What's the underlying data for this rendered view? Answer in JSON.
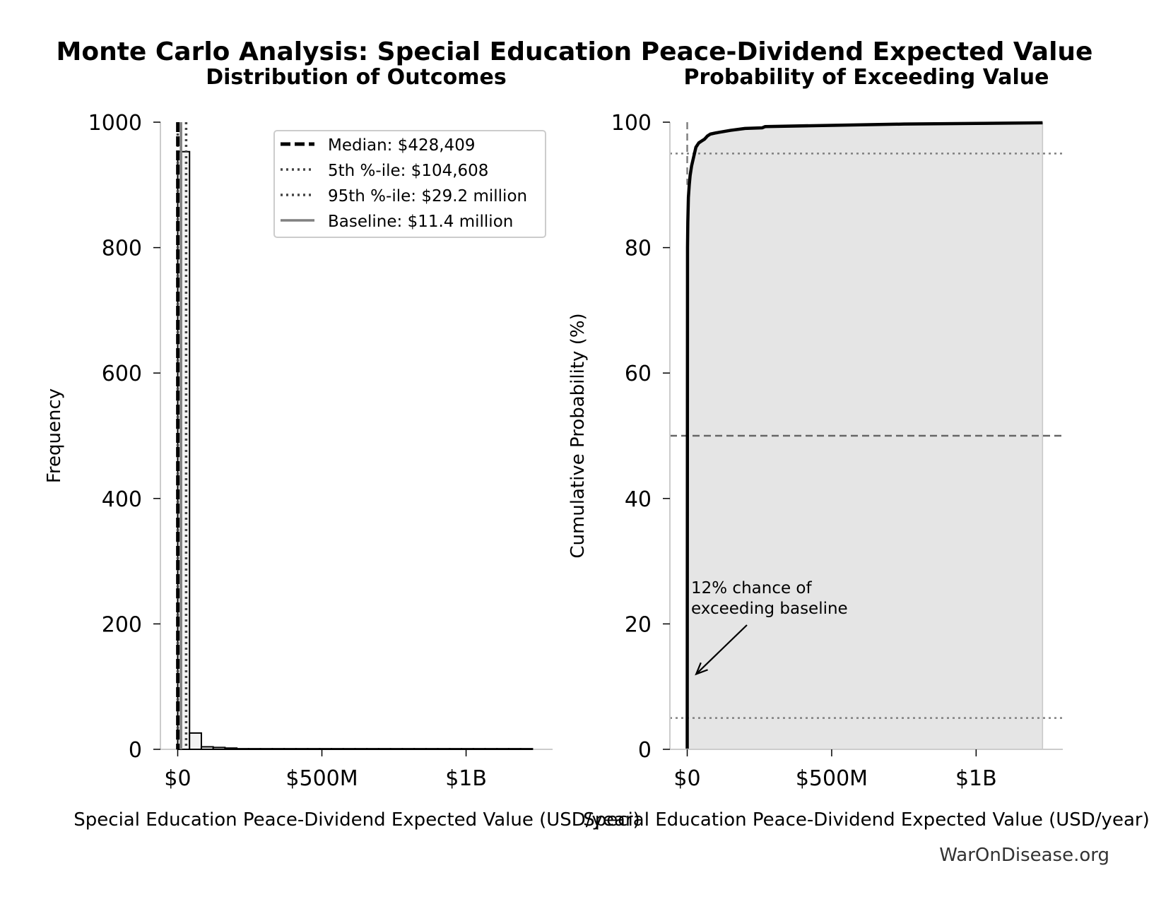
{
  "figure": {
    "suptitle": "Monte Carlo Analysis: Special Education Peace-Dividend Expected Value",
    "watermark": "WarOnDisease.org"
  },
  "chart_data": [
    {
      "type": "bar",
      "title": "Distribution of Outcomes",
      "xlabel": "Special Education Peace-Dividend Expected Value (USD/year)",
      "ylabel": "Frequency",
      "xlim": [
        -60000000,
        1300000000
      ],
      "ylim": [
        0,
        1000
      ],
      "x_ticks": [
        {
          "value": 0,
          "label": "$0"
        },
        {
          "value": 500000000,
          "label": "$500M"
        },
        {
          "value": 1000000000,
          "label": "$1B"
        }
      ],
      "y_ticks": [
        {
          "value": 0,
          "label": "0"
        },
        {
          "value": 200,
          "label": "200"
        },
        {
          "value": 400,
          "label": "400"
        },
        {
          "value": 600,
          "label": "600"
        },
        {
          "value": 800,
          "label": "800"
        },
        {
          "value": 1000,
          "label": "1000"
        }
      ],
      "bins": [
        {
          "x0": 0,
          "x1": 41000000,
          "count": 953
        },
        {
          "x0": 41000000,
          "x1": 82000000,
          "count": 26
        },
        {
          "x0": 82000000,
          "x1": 123000000,
          "count": 4
        },
        {
          "x0": 123000000,
          "x1": 164000000,
          "count": 3
        },
        {
          "x0": 164000000,
          "x1": 205000000,
          "count": 2
        },
        {
          "x0": 205000000,
          "x1": 246000000,
          "count": 1
        },
        {
          "x0": 246000000,
          "x1": 287000000,
          "count": 1
        },
        {
          "x0": 287000000,
          "x1": 328000000,
          "count": 1
        },
        {
          "x0": 328000000,
          "x1": 369000000,
          "count": 1
        },
        {
          "x0": 369000000,
          "x1": 410000000,
          "count": 1
        },
        {
          "x0": 410000000,
          "x1": 451000000,
          "count": 1
        },
        {
          "x0": 451000000,
          "x1": 492000000,
          "count": 1
        },
        {
          "x0": 492000000,
          "x1": 533000000,
          "count": 1
        },
        {
          "x0": 533000000,
          "x1": 574000000,
          "count": 1
        },
        {
          "x0": 574000000,
          "x1": 615000000,
          "count": 1
        },
        {
          "x0": 615000000,
          "x1": 656000000,
          "count": 1
        },
        {
          "x0": 656000000,
          "x1": 697000000,
          "count": 1
        },
        {
          "x0": 697000000,
          "x1": 738000000,
          "count": 1
        },
        {
          "x0": 738000000,
          "x1": 779000000,
          "count": 1
        },
        {
          "x0": 779000000,
          "x1": 820000000,
          "count": 1
        },
        {
          "x0": 820000000,
          "x1": 861000000,
          "count": 1
        },
        {
          "x0": 861000000,
          "x1": 902000000,
          "count": 1
        },
        {
          "x0": 902000000,
          "x1": 943000000,
          "count": 1
        },
        {
          "x0": 943000000,
          "x1": 984000000,
          "count": 1
        },
        {
          "x0": 984000000,
          "x1": 1025000000,
          "count": 1
        },
        {
          "x0": 1025000000,
          "x1": 1066000000,
          "count": 1
        },
        {
          "x0": 1066000000,
          "x1": 1107000000,
          "count": 1
        },
        {
          "x0": 1107000000,
          "x1": 1148000000,
          "count": 1
        },
        {
          "x0": 1148000000,
          "x1": 1189000000,
          "count": 1
        },
        {
          "x0": 1189000000,
          "x1": 1230000000,
          "count": 1
        }
      ],
      "reference_lines": [
        {
          "label": "Median: $428,409",
          "value": 428409,
          "style": "dashed",
          "color": "#000000"
        },
        {
          "label": "5th %-ile: $104,608",
          "value": 104608,
          "style": "dotted",
          "color": "#444444"
        },
        {
          "label": "95th %-ile: $29.2 million",
          "value": 29200000,
          "style": "dotted",
          "color": "#444444"
        },
        {
          "label": "Baseline: $11.4 million",
          "value": 11400000,
          "style": "solid",
          "color": "#808080"
        }
      ],
      "legend_position": "top-right"
    },
    {
      "type": "line",
      "title": "Probability of Exceeding Value",
      "xlabel": "Special Education Peace-Dividend Expected Value (USD/year)",
      "ylabel": "Cumulative Probability (%)",
      "xlim": [
        -60000000,
        1300000000
      ],
      "ylim": [
        0,
        100
      ],
      "x_ticks": [
        {
          "value": 0,
          "label": "$0"
        },
        {
          "value": 500000000,
          "label": "$500M"
        },
        {
          "value": 1000000000,
          "label": "$1B"
        }
      ],
      "y_ticks": [
        {
          "value": 0,
          "label": "0"
        },
        {
          "value": 20,
          "label": "20"
        },
        {
          "value": 40,
          "label": "40"
        },
        {
          "value": 60,
          "label": "60"
        },
        {
          "value": 80,
          "label": "80"
        },
        {
          "value": 100,
          "label": "100"
        }
      ],
      "series": [
        {
          "x": [
            0,
            0,
            1000000,
            2000000,
            4000000,
            7000000,
            10000000,
            15000000,
            20000000,
            25000000,
            30000000,
            40000000,
            50000000,
            60000000,
            70000000,
            80000000,
            100000000,
            150000000,
            200000000,
            260000000,
            270000000,
            500000000,
            750000000,
            1000000000,
            1230000000
          ],
          "y": [
            0,
            5,
            80,
            84,
            88,
            90,
            91.5,
            93,
            94,
            95,
            96,
            96.7,
            97,
            97.3,
            97.8,
            98.1,
            98.3,
            98.7,
            99,
            99.1,
            99.3,
            99.5,
            99.7,
            99.8,
            99.9
          ]
        }
      ],
      "reference_lines": [
        {
          "axis": "y",
          "value": 50,
          "style": "dashed"
        },
        {
          "axis": "y",
          "value": 95,
          "style": "dotted"
        },
        {
          "axis": "y",
          "value": 5,
          "style": "dotted"
        },
        {
          "axis": "x",
          "value": 0,
          "style": "dashed"
        }
      ],
      "annotation": {
        "text_lines": [
          "12% chance of",
          "exceeding baseline"
        ],
        "point": [
          11400000,
          12
        ]
      }
    }
  ]
}
